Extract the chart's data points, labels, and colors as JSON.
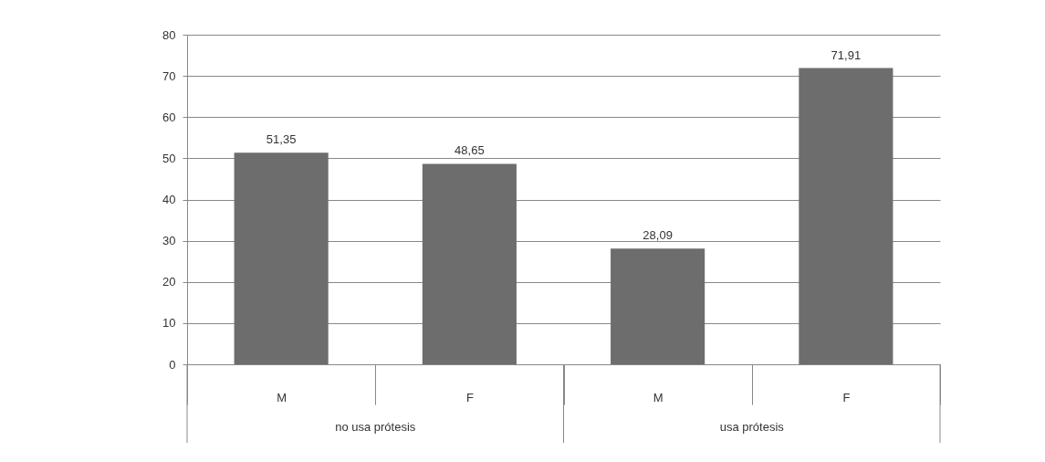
{
  "chart_data": {
    "type": "bar",
    "categories": [
      "M",
      "F",
      "M",
      "F"
    ],
    "values": [
      51.35,
      48.65,
      28.09,
      71.91
    ],
    "value_labels": [
      "51,35",
      "48,65",
      "28,09",
      "71,91"
    ],
    "color": "#6d6d6d",
    "ylim": [
      0,
      80
    ],
    "yticks": [
      0,
      10,
      20,
      30,
      40,
      50,
      60,
      70,
      80
    ],
    "grid": "y",
    "annotations": [
      "no usa prótesis",
      "usa prótesis"
    ]
  }
}
